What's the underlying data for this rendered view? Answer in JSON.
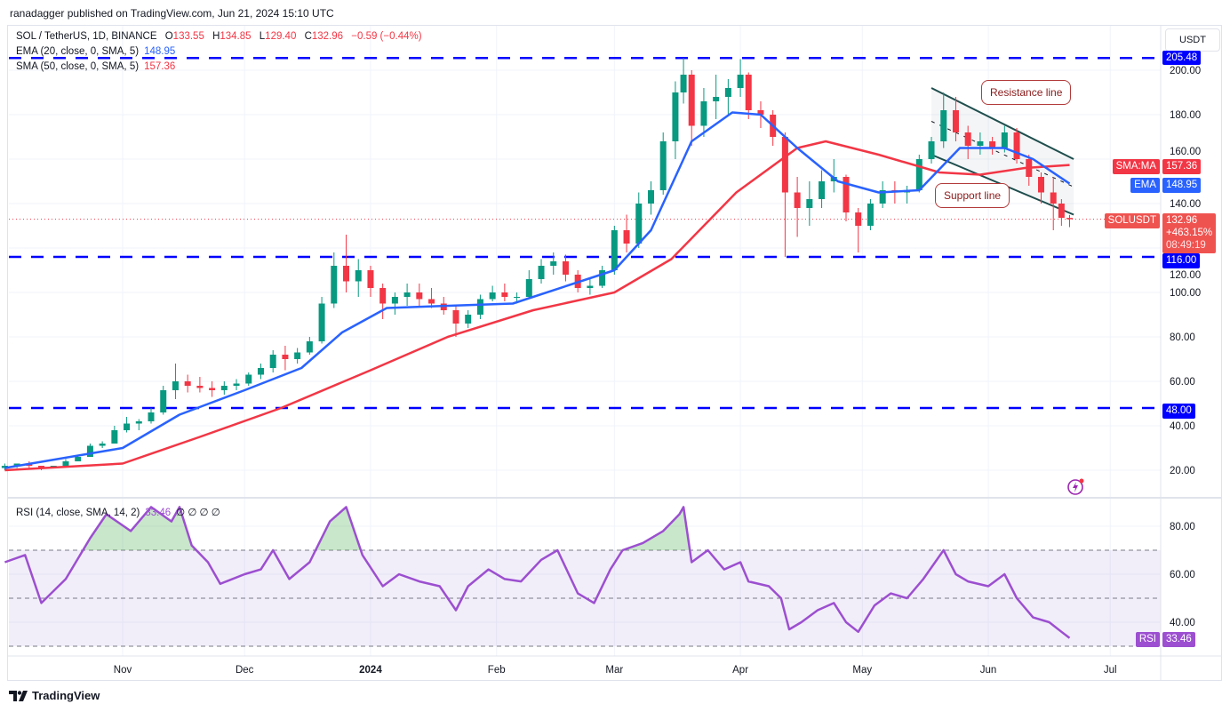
{
  "publisher": "ranadagger published on TradingView.com, Jun 21, 2024 15:10 UTC",
  "legend": {
    "symbol": "SOL / TetherUS, 1D, BINANCE",
    "o_label": "O",
    "o": "133.55",
    "h_label": "H",
    "h": "134.85",
    "l_label": "L",
    "l": "129.40",
    "c_label": "C",
    "c": "132.96",
    "change": "−0.59 (−0.44%)",
    "ema_label": "EMA (20, close, 0, SMA, 5)",
    "ema_value": "148.95",
    "sma_label": "SMA (50, close, 0, SMA, 5)",
    "sma_value": "157.36",
    "rsi_label": "RSI (14, close, SMA, 14, 2)",
    "rsi_value": "33.46",
    "rsi_extra": "∅ ∅ ∅ ∅"
  },
  "currency": "USDT",
  "tags": {
    "resistance_level": "205.48",
    "support_level": "116.00",
    "lower_level": "48.00",
    "sma_name": "SMA:MA",
    "sma_value": "157.36",
    "ema_name": "EMA",
    "ema_value": "148.95",
    "symbol_name": "SOLUSDT",
    "price": "132.96",
    "pct": "+463.15%",
    "countdown": "08:49:19",
    "rsi_name": "RSI",
    "rsi_value": "33.46"
  },
  "annotations": {
    "resistance": "Resistance line",
    "support": "Support line"
  },
  "branding": "TradingView",
  "colors": {
    "up": "#089981",
    "down": "#f23645",
    "ema": "#2962ff",
    "sma": "#f23645",
    "rsi": "#9c4fd0",
    "level": "#0000ff",
    "channel": "#1e4d4d"
  },
  "chart_data": [
    {
      "type": "candlestick",
      "title": "SOL / TetherUS, 1D, BINANCE",
      "ylim": [
        10,
        215
      ],
      "y_ticks": [
        "20.00",
        "40.00",
        "60.00",
        "80.00",
        "100.00",
        "120.00",
        "140.00",
        "160.00",
        "180.00",
        "200.00"
      ],
      "x_ticks": [
        {
          "label": "Nov",
          "date": "2023-11-01"
        },
        {
          "label": "Dec",
          "date": "2023-12-01"
        },
        {
          "label": "2024",
          "date": "2024-01-01"
        },
        {
          "label": "Feb",
          "date": "2024-02-01"
        },
        {
          "label": "Mar",
          "date": "2024-03-01"
        },
        {
          "label": "Apr",
          "date": "2024-04-01"
        },
        {
          "label": "May",
          "date": "2024-05-01"
        },
        {
          "label": "Jun",
          "date": "2024-06-01"
        },
        {
          "label": "Jul",
          "date": "2024-07-01"
        }
      ],
      "grid": true,
      "candles_ohlc": [
        [
          "2023-10-03",
          21,
          23,
          20,
          22
        ],
        [
          "2023-10-06",
          22,
          23,
          21,
          23
        ],
        [
          "2023-10-09",
          23,
          24,
          21,
          22
        ],
        [
          "2023-10-12",
          22,
          22,
          20,
          21
        ],
        [
          "2023-10-15",
          21,
          22,
          21,
          22
        ],
        [
          "2023-10-18",
          22,
          25,
          22,
          24
        ],
        [
          "2023-10-21",
          24,
          27,
          24,
          26
        ],
        [
          "2023-10-24",
          26,
          32,
          26,
          31
        ],
        [
          "2023-10-27",
          31,
          33,
          30,
          32
        ],
        [
          "2023-10-30",
          32,
          40,
          32,
          38
        ],
        [
          "2023-11-02",
          38,
          44,
          37,
          41
        ],
        [
          "2023-11-05",
          41,
          43,
          38,
          42
        ],
        [
          "2023-11-08",
          42,
          48,
          41,
          46
        ],
        [
          "2023-11-11",
          46,
          58,
          45,
          56
        ],
        [
          "2023-11-14",
          56,
          68,
          52,
          60
        ],
        [
          "2023-11-17",
          60,
          63,
          55,
          58
        ],
        [
          "2023-11-20",
          58,
          62,
          55,
          57
        ],
        [
          "2023-11-23",
          57,
          60,
          53,
          56
        ],
        [
          "2023-11-26",
          56,
          60,
          54,
          58
        ],
        [
          "2023-11-29",
          58,
          61,
          56,
          59
        ],
        [
          "2023-12-02",
          59,
          64,
          58,
          63
        ],
        [
          "2023-12-05",
          63,
          68,
          61,
          66
        ],
        [
          "2023-12-08",
          66,
          74,
          64,
          72
        ],
        [
          "2023-12-11",
          72,
          76,
          65,
          70
        ],
        [
          "2023-12-14",
          70,
          75,
          68,
          73
        ],
        [
          "2023-12-17",
          73,
          80,
          72,
          78
        ],
        [
          "2023-12-20",
          78,
          98,
          77,
          95
        ],
        [
          "2023-12-23",
          95,
          118,
          93,
          112
        ],
        [
          "2023-12-26",
          112,
          126,
          100,
          105
        ],
        [
          "2023-12-29",
          105,
          115,
          98,
          110
        ],
        [
          "2024-01-01",
          110,
          112,
          98,
          102
        ],
        [
          "2024-01-04",
          102,
          104,
          88,
          95
        ],
        [
          "2024-01-07",
          95,
          100,
          90,
          98
        ],
        [
          "2024-01-10",
          98,
          104,
          94,
          100
        ],
        [
          "2024-01-13",
          100,
          104,
          94,
          97
        ],
        [
          "2024-01-16",
          97,
          102,
          93,
          95
        ],
        [
          "2024-01-19",
          95,
          98,
          90,
          92
        ],
        [
          "2024-01-22",
          92,
          94,
          80,
          86
        ],
        [
          "2024-01-25",
          86,
          92,
          84,
          90
        ],
        [
          "2024-01-28",
          90,
          99,
          88,
          97
        ],
        [
          "2024-01-31",
          97,
          103,
          96,
          100
        ],
        [
          "2024-02-03",
          100,
          104,
          96,
          98
        ],
        [
          "2024-02-06",
          98,
          100,
          95,
          98
        ],
        [
          "2024-02-09",
          98,
          110,
          97,
          106
        ],
        [
          "2024-02-12",
          106,
          115,
          104,
          112
        ],
        [
          "2024-02-15",
          112,
          118,
          108,
          114
        ],
        [
          "2024-02-18",
          114,
          117,
          105,
          108
        ],
        [
          "2024-02-21",
          108,
          110,
          100,
          102
        ],
        [
          "2024-02-24",
          102,
          106,
          99,
          103
        ],
        [
          "2024-02-27",
          103,
          112,
          102,
          110
        ],
        [
          "2024-03-01",
          110,
          130,
          108,
          128
        ],
        [
          "2024-03-04",
          128,
          135,
          118,
          122
        ],
        [
          "2024-03-07",
          122,
          145,
          120,
          140
        ],
        [
          "2024-03-10",
          140,
          150,
          135,
          146
        ],
        [
          "2024-03-13",
          146,
          172,
          144,
          168
        ],
        [
          "2024-03-16",
          168,
          195,
          160,
          190
        ],
        [
          "2024-03-18",
          190,
          205.48,
          185,
          198
        ],
        [
          "2024-03-20",
          198,
          200,
          166,
          175
        ],
        [
          "2024-03-23",
          175,
          192,
          170,
          186
        ],
        [
          "2024-03-26",
          186,
          198,
          178,
          188
        ],
        [
          "2024-03-29",
          188,
          196,
          180,
          192
        ],
        [
          "2024-04-01",
          192,
          205,
          188,
          198
        ],
        [
          "2024-04-03",
          198,
          199,
          178,
          182
        ],
        [
          "2024-04-06",
          182,
          186,
          174,
          180
        ],
        [
          "2024-04-09",
          180,
          182,
          166,
          170
        ],
        [
          "2024-04-12",
          170,
          172,
          116,
          145
        ],
        [
          "2024-04-15",
          145,
          152,
          125,
          138
        ],
        [
          "2024-04-18",
          138,
          150,
          130,
          142
        ],
        [
          "2024-04-21",
          142,
          155,
          138,
          150
        ],
        [
          "2024-04-24",
          150,
          160,
          145,
          152
        ],
        [
          "2024-04-27",
          152,
          153,
          132,
          136
        ],
        [
          "2024-04-30",
          136,
          138,
          118,
          130
        ],
        [
          "2024-05-03",
          130,
          142,
          128,
          140
        ],
        [
          "2024-05-06",
          140,
          150,
          138,
          146
        ],
        [
          "2024-05-09",
          146,
          150,
          140,
          145
        ],
        [
          "2024-05-12",
          145,
          148,
          140,
          146
        ],
        [
          "2024-05-15",
          146,
          162,
          145,
          160
        ],
        [
          "2024-05-18",
          160,
          170,
          158,
          168
        ],
        [
          "2024-05-21",
          168,
          190,
          165,
          182
        ],
        [
          "2024-05-24",
          182,
          188,
          168,
          172
        ],
        [
          "2024-05-27",
          172,
          175,
          160,
          166
        ],
        [
          "2024-05-30",
          166,
          172,
          162,
          168
        ],
        [
          "2024-06-02",
          168,
          170,
          162,
          165
        ],
        [
          "2024-06-05",
          165,
          175,
          163,
          172
        ],
        [
          "2024-06-08",
          172,
          174,
          158,
          160
        ],
        [
          "2024-06-11",
          160,
          162,
          148,
          152
        ],
        [
          "2024-06-14",
          152,
          154,
          140,
          145
        ],
        [
          "2024-06-17",
          145,
          152,
          128,
          140
        ],
        [
          "2024-06-19",
          140,
          142,
          130,
          133.55
        ],
        [
          "2024-06-21",
          133.55,
          134.85,
          129.4,
          132.96
        ]
      ],
      "series": [
        {
          "name": "EMA (20, close, 0, SMA, 5)",
          "points": [
            [
              "2023-10-03",
              21
            ],
            [
              "2023-11-01",
              30
            ],
            [
              "2023-11-15",
              45
            ],
            [
              "2023-12-01",
              56
            ],
            [
              "2023-12-15",
              66
            ],
            [
              "2023-12-25",
              82
            ],
            [
              "2024-01-05",
              93
            ],
            [
              "2024-01-20",
              94
            ],
            [
              "2024-02-05",
              95
            ],
            [
              "2024-02-20",
              104
            ],
            [
              "2024-03-01",
              110
            ],
            [
              "2024-03-10",
              128
            ],
            [
              "2024-03-20",
              168
            ],
            [
              "2024-03-30",
              181
            ],
            [
              "2024-04-06",
              180
            ],
            [
              "2024-04-15",
              165
            ],
            [
              "2024-04-25",
              150
            ],
            [
              "2024-05-05",
              145
            ],
            [
              "2024-05-15",
              146
            ],
            [
              "2024-05-25",
              165
            ],
            [
              "2024-06-05",
              165
            ],
            [
              "2024-06-12",
              160
            ],
            [
              "2024-06-21",
              148.95
            ]
          ]
        },
        {
          "name": "SMA (50, close, 0, SMA, 5)",
          "points": [
            [
              "2023-10-03",
              20
            ],
            [
              "2023-11-01",
              23
            ],
            [
              "2023-11-20",
              35
            ],
            [
              "2023-12-10",
              48
            ],
            [
              "2024-01-01",
              65
            ],
            [
              "2024-01-20",
              80
            ],
            [
              "2024-02-10",
              92
            ],
            [
              "2024-03-01",
              100
            ],
            [
              "2024-03-15",
              115
            ],
            [
              "2024-03-31",
              145
            ],
            [
              "2024-04-15",
              165
            ],
            [
              "2024-04-22",
              168
            ],
            [
              "2024-05-05",
              162
            ],
            [
              "2024-05-20",
              154
            ],
            [
              "2024-05-30",
              153
            ],
            [
              "2024-06-10",
              156
            ],
            [
              "2024-06-21",
              157.36
            ]
          ]
        }
      ],
      "horizontal_levels": [
        205.48,
        116.0,
        48.0
      ],
      "channel": {
        "resistance_line": [
          [
            "2024-05-18",
            192
          ],
          [
            "2024-06-22",
            160
          ]
        ],
        "support_line": [
          [
            "2024-05-18",
            162
          ],
          [
            "2024-06-22",
            135
          ]
        ]
      },
      "last_price": 132.96
    },
    {
      "type": "line",
      "title": "RSI (14, close, SMA, 14, 2)",
      "ylim": [
        27,
        92
      ],
      "y_ticks": [
        "40.00",
        "60.00",
        "80.00"
      ],
      "bands": [
        70,
        50,
        30
      ],
      "values": [
        [
          "2023-10-03",
          65
        ],
        [
          "2023-10-08",
          68
        ],
        [
          "2023-10-12",
          48
        ],
        [
          "2023-10-18",
          58
        ],
        [
          "2023-10-24",
          75
        ],
        [
          "2023-10-28",
          85
        ],
        [
          "2023-11-03",
          78
        ],
        [
          "2023-11-08",
          88
        ],
        [
          "2023-11-13",
          82
        ],
        [
          "2023-11-15",
          88
        ],
        [
          "2023-11-18",
          72
        ],
        [
          "2023-11-22",
          65
        ],
        [
          "2023-11-25",
          56
        ],
        [
          "2023-12-01",
          60
        ],
        [
          "2023-12-05",
          62
        ],
        [
          "2023-12-08",
          70
        ],
        [
          "2023-12-12",
          58
        ],
        [
          "2023-12-17",
          65
        ],
        [
          "2023-12-22",
          82
        ],
        [
          "2023-12-26",
          88
        ],
        [
          "2023-12-30",
          68
        ],
        [
          "2024-01-04",
          55
        ],
        [
          "2024-01-08",
          60
        ],
        [
          "2024-01-13",
          57
        ],
        [
          "2024-01-18",
          55
        ],
        [
          "2024-01-22",
          45
        ],
        [
          "2024-01-25",
          55
        ],
        [
          "2024-01-30",
          62
        ],
        [
          "2024-02-03",
          58
        ],
        [
          "2024-02-07",
          57
        ],
        [
          "2024-02-12",
          66
        ],
        [
          "2024-02-16",
          70
        ],
        [
          "2024-02-21",
          52
        ],
        [
          "2024-02-25",
          48
        ],
        [
          "2024-02-29",
          62
        ],
        [
          "2024-03-03",
          70
        ],
        [
          "2024-03-08",
          73
        ],
        [
          "2024-03-13",
          78
        ],
        [
          "2024-03-17",
          85
        ],
        [
          "2024-03-18",
          88
        ],
        [
          "2024-03-20",
          65
        ],
        [
          "2024-03-24",
          70
        ],
        [
          "2024-03-28",
          62
        ],
        [
          "2024-04-01",
          65
        ],
        [
          "2024-04-03",
          57
        ],
        [
          "2024-04-08",
          55
        ],
        [
          "2024-04-11",
          50
        ],
        [
          "2024-04-13",
          37
        ],
        [
          "2024-04-16",
          40
        ],
        [
          "2024-04-20",
          45
        ],
        [
          "2024-04-24",
          48
        ],
        [
          "2024-04-27",
          40
        ],
        [
          "2024-04-30",
          36
        ],
        [
          "2024-05-04",
          47
        ],
        [
          "2024-05-08",
          52
        ],
        [
          "2024-05-12",
          50
        ],
        [
          "2024-05-16",
          58
        ],
        [
          "2024-05-21",
          70
        ],
        [
          "2024-05-24",
          60
        ],
        [
          "2024-05-27",
          57
        ],
        [
          "2024-06-01",
          55
        ],
        [
          "2024-06-05",
          60
        ],
        [
          "2024-06-08",
          50
        ],
        [
          "2024-06-12",
          42
        ],
        [
          "2024-06-16",
          40
        ],
        [
          "2024-06-19",
          36
        ],
        [
          "2024-06-21",
          33.46
        ]
      ]
    }
  ]
}
